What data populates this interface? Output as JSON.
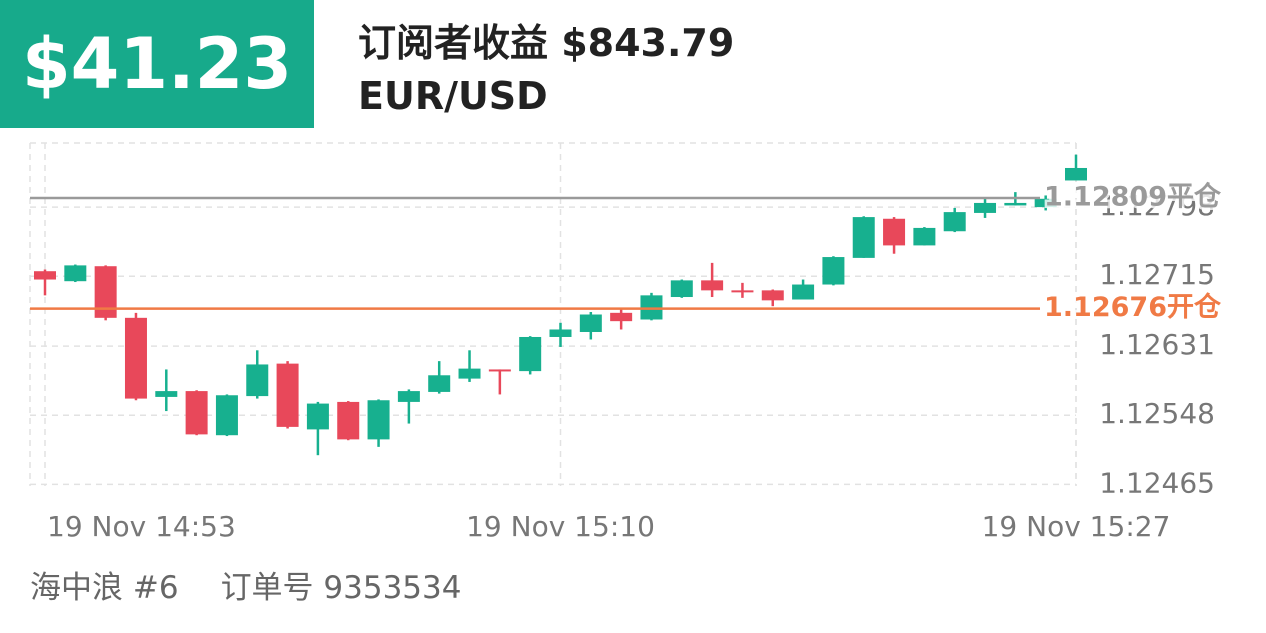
{
  "header": {
    "profit": "$41.23",
    "title": "订阅者收益 $843.79",
    "pair": "EUR/USD"
  },
  "chart_data": {
    "type": "candlestick",
    "categories": [
      "19 Nov  14:53",
      null,
      null,
      null,
      null,
      null,
      null,
      null,
      null,
      null,
      null,
      null,
      null,
      null,
      null,
      null,
      null,
      "19 Nov  15:10",
      null,
      null,
      null,
      null,
      null,
      null,
      null,
      null,
      null,
      null,
      null,
      null,
      null,
      null,
      null,
      null,
      "19 Nov  15:27"
    ],
    "open": [
      1.12721,
      1.12709,
      1.12727,
      1.12665,
      1.1257,
      1.12577,
      1.12524,
      1.12571,
      1.1261,
      1.12531,
      1.12564,
      1.12519,
      1.12564,
      1.12576,
      1.12592,
      1.12603,
      1.12601,
      1.12642,
      1.12648,
      1.12671,
      1.12663,
      1.1269,
      1.1271,
      1.12698,
      1.12698,
      1.12687,
      1.12705,
      1.12737,
      1.12784,
      1.12752,
      1.12769,
      1.12791,
      1.128,
      1.12798,
      1.1283
    ],
    "high": [
      1.12723,
      1.12729,
      1.12728,
      1.12671,
      1.12603,
      1.12578,
      1.12573,
      1.12626,
      1.12613,
      1.12564,
      1.12565,
      1.12567,
      1.12579,
      1.12613,
      1.12626,
      1.12603,
      1.12643,
      1.12659,
      1.12672,
      1.12677,
      1.12695,
      1.12711,
      1.12731,
      1.12707,
      1.12699,
      1.12711,
      1.12739,
      1.12787,
      1.12786,
      1.12774,
      1.12797,
      1.12809,
      1.12816,
      1.12812,
      1.12861
    ],
    "low": [
      1.12692,
      1.12708,
      1.12662,
      1.12566,
      1.12553,
      1.12524,
      1.12523,
      1.12568,
      1.12532,
      1.125,
      1.12518,
      1.1251,
      1.12538,
      1.12574,
      1.12588,
      1.12573,
      1.12597,
      1.1263,
      1.12639,
      1.12651,
      1.12662,
      1.12689,
      1.1269,
      1.12689,
      1.12679,
      1.12687,
      1.12704,
      1.12737,
      1.12742,
      1.12752,
      1.12768,
      1.12785,
      1.128,
      1.12794,
      1.1283
    ],
    "close": [
      1.12711,
      1.12728,
      1.12665,
      1.12568,
      1.12577,
      1.12525,
      1.12572,
      1.12609,
      1.12534,
      1.12562,
      1.12519,
      1.12566,
      1.12577,
      1.12596,
      1.12604,
      1.12601,
      1.12642,
      1.12651,
      1.12669,
      1.12661,
      1.12692,
      1.1271,
      1.12698,
      1.12696,
      1.12686,
      1.12705,
      1.12738,
      1.12786,
      1.12752,
      1.12773,
      1.12792,
      1.12803,
      1.12803,
      1.12808,
      1.12845
    ],
    "up_color": "#17b08f",
    "down_color": "#e8485a",
    "ylim": [
      1.12463,
      1.12875
    ],
    "yticks": [
      1.12465,
      1.12548,
      1.12631,
      1.12715,
      1.12798
    ],
    "grid": true,
    "lines": [
      {
        "value": 1.12809,
        "label": "1.12809平仓",
        "color": "#9a9a9a"
      },
      {
        "value": 1.12676,
        "label": "1.12676开仓",
        "color": "#f07a45"
      }
    ]
  },
  "footer": {
    "trader": "海中浪 #6",
    "order": "订单号 9353534"
  }
}
